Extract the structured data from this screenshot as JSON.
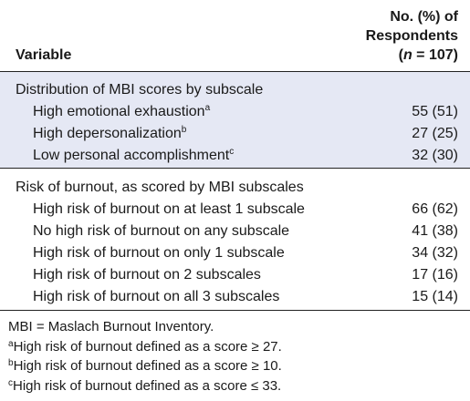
{
  "header": {
    "variable": "Variable",
    "column_line1": "No. (%) of",
    "column_line2": "Respondents",
    "column_line3_open": "(",
    "column_line3_n": "n",
    "column_line3_rest": " = 107)"
  },
  "sections": [
    {
      "title": "Distribution of MBI scores by subscale",
      "rows": [
        {
          "label": "High emotional exhaustion",
          "sup": "a",
          "value": "55 (51)"
        },
        {
          "label": "High depersonalization",
          "sup": "b",
          "value": "27 (25)"
        },
        {
          "label": "Low personal accomplishment",
          "sup": "c",
          "value": "32 (30)"
        }
      ]
    },
    {
      "title": "Risk of burnout, as scored by MBI subscales",
      "rows": [
        {
          "label": "High risk of burnout on at least 1 subscale",
          "value": "66 (62)"
        },
        {
          "label": "No high risk of burnout on any subscale",
          "value": "41 (38)"
        },
        {
          "label": "High risk of burnout on only 1 subscale",
          "value": "34 (32)"
        },
        {
          "label": "High risk of burnout on 2 subscales",
          "value": "17 (16)"
        },
        {
          "label": "High risk of burnout on all 3 subscales",
          "value": "15 (14)"
        }
      ]
    }
  ],
  "footnotes": {
    "abbrev": "MBI = Maslach Burnout Inventory.",
    "a_mark": "a",
    "a_text": "High risk of burnout defined as a score ≥ 27.",
    "b_mark": "b",
    "b_text": "High risk of burnout defined as a score ≥ 10.",
    "c_mark": "c",
    "c_text": "High risk of burnout defined as a score ≤ 33."
  },
  "colors": {
    "shaded_section": "#e5e8f4",
    "rule": "#222222"
  }
}
